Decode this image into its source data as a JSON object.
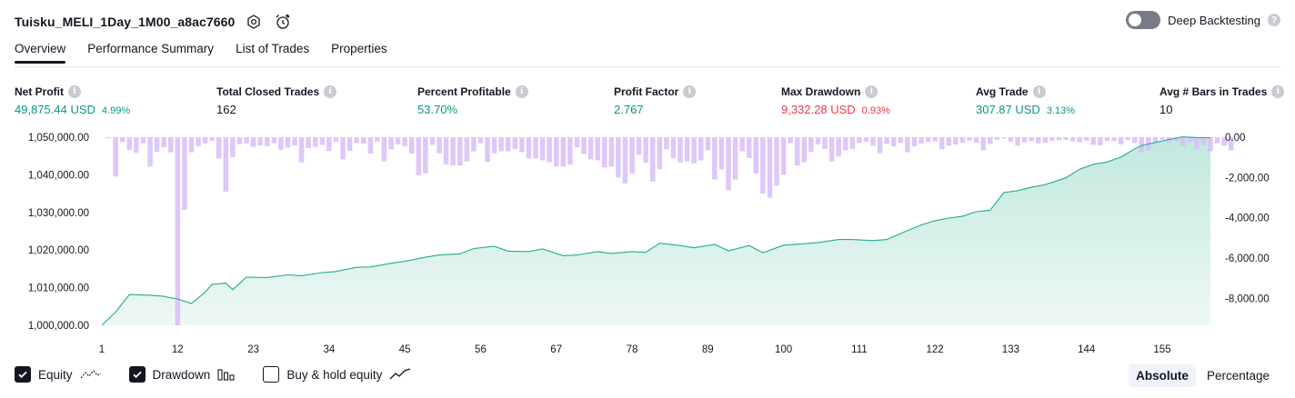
{
  "header": {
    "strategy_name": "Tuisku_MELI_1Day_1M00_a8ac7660",
    "settings_icon": "settings-hexagon-icon",
    "alert_icon": "alarm-clock-plus-icon"
  },
  "deep_backtesting": {
    "label": "Deep Backtesting",
    "enabled": false,
    "help": "?"
  },
  "tabs": [
    {
      "label": "Overview",
      "active": true
    },
    {
      "label": "Performance Summary",
      "active": false
    },
    {
      "label": "List of Trades",
      "active": false
    },
    {
      "label": "Properties",
      "active": false
    }
  ],
  "metrics": {
    "net_profit": {
      "label": "Net Profit",
      "value": "49,875.44 USD",
      "sub": "4.99%"
    },
    "total_closed_trades": {
      "label": "Total Closed Trades",
      "value": "162"
    },
    "percent_profitable": {
      "label": "Percent Profitable",
      "value": "53.70%"
    },
    "profit_factor": {
      "label": "Profit Factor",
      "value": "2.767"
    },
    "max_drawdown": {
      "label": "Max Drawdown",
      "value": "9,332.28 USD",
      "sub": "0.93%"
    },
    "avg_trade": {
      "label": "Avg Trade",
      "value": "307.87 USD",
      "sub": "3.13%"
    },
    "avg_bars": {
      "label": "Avg # Bars in Trades",
      "value": "10"
    }
  },
  "colors": {
    "equity_line": "#22ab94",
    "equity_fill_top": "#c1e8de",
    "equity_fill_bottom": "#eef8f5",
    "drawdown_bar": "#d8bdf9",
    "positive": "#089981",
    "negative": "#f23645"
  },
  "legend": {
    "equity": {
      "label": "Equity",
      "checked": true,
      "icon": "equity-line-icon"
    },
    "drawdown": {
      "label": "Drawdown",
      "checked": true,
      "icon": "drawdown-bars-icon"
    },
    "buy_hold": {
      "label": "Buy & hold equity",
      "checked": false,
      "icon": "buy-hold-line-icon"
    }
  },
  "view_mode": {
    "options": [
      "Absolute",
      "Percentage"
    ],
    "selected": "Absolute"
  },
  "chart_data": {
    "type": "line+bar",
    "x_ticks": [
      1,
      12,
      23,
      34,
      45,
      56,
      67,
      78,
      89,
      100,
      111,
      122,
      133,
      144,
      155
    ],
    "left_axis": {
      "label": "",
      "ticks": [
        "1,000,000.00",
        "1,010,000.00",
        "1,020,000.00",
        "1,030,000.00",
        "1,040,000.00",
        "1,050,000.00"
      ],
      "ylim": [
        1000000,
        1050000
      ]
    },
    "right_axis": {
      "label": "",
      "ticks": [
        "0.00",
        "-2,000.00",
        "-4,000.00",
        "-6,000.00",
        "-8,000.00"
      ],
      "ylim": [
        -9332.28,
        0
      ]
    },
    "series": [
      {
        "name": "Equity",
        "type": "area",
        "axis": "left",
        "x": [
          1,
          3,
          5,
          8,
          10,
          11,
          12,
          14,
          16,
          17,
          19,
          20,
          22,
          25,
          28,
          30,
          33,
          35,
          38,
          40,
          43,
          45,
          48,
          50,
          53,
          55,
          58,
          60,
          63,
          65,
          68,
          70,
          73,
          75,
          78,
          80,
          82,
          85,
          87,
          90,
          92,
          95,
          97,
          100,
          103,
          105,
          108,
          110,
          113,
          115,
          118,
          120,
          122,
          124,
          126,
          128,
          130,
          132,
          134,
          136,
          138,
          140,
          141,
          143,
          145,
          147,
          149,
          151,
          152,
          154,
          156,
          158,
          160,
          162
        ],
        "y": [
          1000000,
          1003500,
          1008200,
          1008000,
          1007700,
          1007300,
          1007000,
          1005800,
          1008800,
          1010900,
          1011200,
          1009500,
          1012800,
          1012700,
          1013400,
          1013200,
          1014000,
          1014300,
          1015400,
          1015500,
          1016500,
          1017000,
          1018100,
          1018700,
          1019000,
          1020400,
          1021000,
          1019700,
          1019600,
          1020300,
          1018500,
          1018700,
          1019600,
          1019100,
          1019600,
          1019400,
          1021800,
          1021200,
          1020600,
          1021500,
          1019800,
          1021200,
          1019300,
          1021300,
          1021700,
          1022000,
          1022800,
          1022800,
          1022500,
          1022800,
          1025200,
          1026700,
          1027800,
          1028500,
          1029000,
          1030200,
          1030600,
          1035300,
          1035800,
          1036700,
          1037400,
          1038600,
          1039200,
          1041500,
          1042800,
          1043400,
          1044700,
          1046900,
          1047800,
          1048600,
          1049400,
          1050100,
          1049900,
          1049875.44
        ]
      },
      {
        "name": "Drawdown",
        "type": "bar",
        "axis": "right",
        "values": [
          0,
          -60,
          -1950,
          -240,
          -630,
          -780,
          -300,
          -1450,
          -720,
          -500,
          -750,
          -9332.28,
          -3600,
          -750,
          -450,
          -310,
          -180,
          -1050,
          -2700,
          -980,
          -350,
          -310,
          -480,
          -400,
          -450,
          -300,
          -620,
          -520,
          -410,
          -1250,
          -540,
          -480,
          -380,
          -690,
          -220,
          -1100,
          -670,
          -290,
          -320,
          -810,
          -210,
          -1200,
          -600,
          -350,
          -440,
          -820,
          -1900,
          -1800,
          -380,
          -800,
          -1350,
          -1400,
          -1400,
          -1200,
          -700,
          -300,
          -1230,
          -800,
          -700,
          -700,
          -590,
          -740,
          -1050,
          -1050,
          -1150,
          -1250,
          -1450,
          -1450,
          -1350,
          -500,
          -830,
          -1100,
          -1150,
          -1500,
          -1450,
          -2000,
          -2300,
          -1800,
          -860,
          -1270,
          -2200,
          -1590,
          -600,
          -1050,
          -1250,
          -1200,
          -1300,
          -1150,
          -640,
          -2100,
          -1600,
          -2620,
          -2100,
          -700,
          -1030,
          -1800,
          -2800,
          -3000,
          -2400,
          -1870,
          -300,
          -1400,
          -1250,
          -730,
          -350,
          -580,
          -1200,
          -950,
          -650,
          -580,
          -280,
          -230,
          -420,
          -790,
          -330,
          -460,
          -280,
          -750,
          -450,
          -310,
          -230,
          -210,
          -600,
          -420,
          -370,
          -280,
          -170,
          -270,
          -650,
          -330,
          -130,
          -60,
          -210,
          -420,
          -260,
          -190,
          -310,
          -280,
          -180,
          -150,
          -130,
          -210,
          -250,
          -170,
          -380,
          -400,
          -180,
          -190,
          -350,
          -130,
          -290,
          -760,
          -650,
          -250,
          -120,
          -220,
          -180,
          -450,
          -250,
          -600,
          -400,
          -700,
          -300,
          -430,
          -660
        ]
      }
    ]
  }
}
